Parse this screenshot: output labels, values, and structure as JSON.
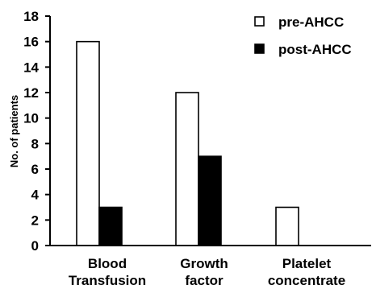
{
  "chart_data": {
    "type": "bar",
    "categories": [
      [
        "Blood",
        "Transfusion"
      ],
      [
        "Growth",
        "factor"
      ],
      [
        "Platelet",
        "concentrate"
      ]
    ],
    "series": [
      {
        "name": "pre-AHCC",
        "values": [
          16,
          12,
          3
        ],
        "color": "#ffffff"
      },
      {
        "name": "post-AHCC",
        "values": [
          3,
          7,
          0
        ],
        "color": "#000000"
      }
    ],
    "ylabel": "No. of patients",
    "ylim": [
      0,
      18
    ],
    "yticks": [
      0,
      2,
      4,
      6,
      8,
      10,
      12,
      14,
      16,
      18
    ],
    "grid": false,
    "legend_position": "top-right"
  }
}
